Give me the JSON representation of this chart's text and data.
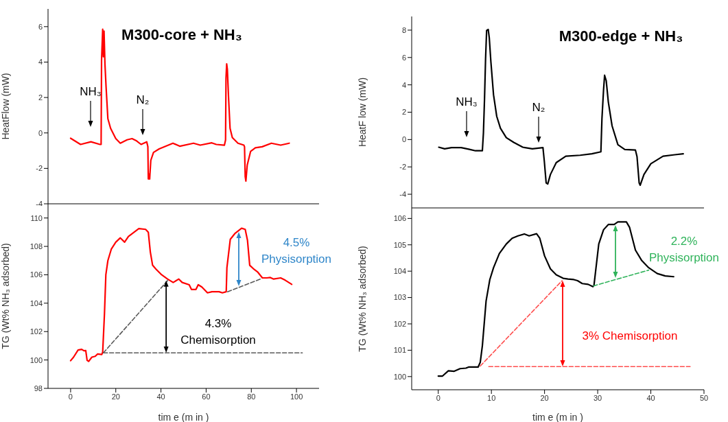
{
  "chart_data": [
    {
      "type": "line",
      "title": "M300-core + NH₃",
      "ylabel": "HeatFlow (mW)",
      "xlim": [
        -10,
        110
      ],
      "xticks": [
        0,
        20,
        40,
        60,
        80,
        100
      ],
      "ylim": [
        -4,
        7
      ],
      "yticks": [
        -4,
        -2,
        0,
        2,
        4,
        6
      ],
      "tick_labels": "y",
      "annotations": [
        "NH₃",
        "N₂"
      ],
      "series": [
        {
          "color": "#ff0000",
          "x": [
            0,
            4.4,
            9,
            13,
            13.5,
            13.7,
            14.2,
            14.5,
            14.8,
            15.2,
            15.7,
            16.5,
            17.7,
            20,
            22,
            25,
            27.2,
            29.2,
            31.2,
            33.7,
            34.2,
            34.4,
            34.7,
            35,
            35.5,
            36.7,
            39.2,
            45.3,
            48.3,
            54.4,
            57.4,
            62.5,
            64.5,
            68.1,
            68.6,
            68.8,
            69.1,
            69.4,
            69.9,
            70.6,
            71.6,
            74.1,
            76.7,
            77,
            77.3,
            77.6,
            78.2,
            79.7,
            81.8,
            84.8,
            88.9,
            93,
            96.8
          ],
          "values": [
            -0.3,
            -0.65,
            -0.5,
            -0.65,
            -0.65,
            4.1,
            5.85,
            4.3,
            5.75,
            3.9,
            2.6,
            0.8,
            0.26,
            -0.32,
            -0.58,
            -0.39,
            -0.32,
            -0.45,
            -0.65,
            -0.5,
            -0.78,
            -2.6,
            -2.33,
            -2.6,
            -1.55,
            -1.1,
            -0.9,
            -0.58,
            -0.75,
            -0.58,
            -0.69,
            -0.56,
            -0.65,
            -0.69,
            -0.4,
            3.1,
            3.9,
            3.6,
            2.07,
            0.26,
            -0.26,
            -0.58,
            -0.69,
            -0.78,
            -2.46,
            -2.72,
            -1.81,
            -1.04,
            -0.84,
            -0.78,
            -0.58,
            -0.69,
            -0.58
          ]
        }
      ]
    },
    {
      "type": "line",
      "xlabel": "tim e  (m in )",
      "ylabel": "TG (Wt% NH₃ adsorbed)",
      "xlim": [
        -10,
        110
      ],
      "xticks": [
        0,
        20,
        40,
        60,
        80,
        100
      ],
      "ylim": [
        98,
        111
      ],
      "yticks": [
        98,
        100,
        102,
        104,
        106,
        108,
        110
      ],
      "annotations": [
        {
          "text": "4.3%\nChemisorption",
          "x": 42.3,
          "y": 105.6
        },
        "4.5%\nPhysisorption"
      ],
      "series": [
        {
          "color": "#ff0000",
          "x": [
            0,
            1.3,
            3.3,
            4.9,
            5.9,
            6.7,
            7.3,
            8,
            9.4,
            10.9,
            11.9,
            13.8,
            14.2,
            15,
            15.6,
            16.5,
            18,
            20,
            22,
            23.9,
            25.6,
            27.7,
            30.2,
            33.2,
            34.4,
            35.3,
            36.3,
            37.8,
            40.3,
            42.9,
            45.4,
            47.9,
            49.4,
            52.5,
            53.5,
            55.5,
            56.5,
            58.1,
            60.6,
            62.6,
            65.7,
            67.2,
            68.9,
            69.2,
            70.7,
            72.7,
            75.7,
            77.3,
            78.3,
            79.3,
            80.9,
            82.9,
            84.9,
            86.9,
            88.4,
            89.9,
            93,
            95,
            97.9
          ],
          "values": [
            99.95,
            100.2,
            100.7,
            100.75,
            100.65,
            100.66,
            99.98,
            99.9,
            100.2,
            100.26,
            100.42,
            100.39,
            100.55,
            103.3,
            106.0,
            107.0,
            107.8,
            108.3,
            108.6,
            108.3,
            108.7,
            108.95,
            109.25,
            109.2,
            109.0,
            107.6,
            106.67,
            106.4,
            106.0,
            105.7,
            105.46,
            105.7,
            105.46,
            105.3,
            104.97,
            104.97,
            105.3,
            105.14,
            104.73,
            104.81,
            104.81,
            104.73,
            104.81,
            106.5,
            108.5,
            108.9,
            109.28,
            109.2,
            108.44,
            106.67,
            106.43,
            106.18,
            105.78,
            105.78,
            105.81,
            105.7,
            105.78,
            105.62,
            105.33
          ]
        },
        {
          "color": "#595959",
          "line_style": "dashed",
          "x": [
            14.5,
            43
          ],
          "values": [
            100.5,
            105.6
          ]
        },
        {
          "color": "#595959",
          "line_style": "dashed",
          "x": [
            14.5,
            102.6
          ],
          "values": [
            100.5,
            100.5
          ]
        },
        {
          "color": "#595959",
          "line_style": "dashed",
          "x": [
            69.5,
            84
          ],
          "values": [
            104.8,
            105.7
          ]
        }
      ]
    },
    {
      "type": "line",
      "title": "M300-edge + NH₃",
      "ylabel": "HeatF low (mW)",
      "xlim": [
        -5,
        50
      ],
      "xticks": [
        0,
        10,
        20,
        30,
        40,
        50
      ],
      "ylim": [
        -5,
        9
      ],
      "yticks": [
        -4,
        -2,
        0,
        2,
        4,
        6,
        8
      ],
      "tick_labels": "y",
      "annotations": [
        "NH₃",
        "N₂"
      ],
      "series": [
        {
          "color": "#000000",
          "x": [
            0.1,
            1.2,
            2.5,
            4.3,
            5.7,
            7,
            8.3,
            8.5,
            8.7,
            8.9,
            9.1,
            9.4,
            9.6,
            9.9,
            10.4,
            11,
            11.7,
            12.8,
            14.2,
            15.9,
            17.7,
            19.7,
            19.96,
            20.3,
            20.6,
            21.1,
            22.2,
            24,
            26.7,
            28.9,
            30.6,
            30.8,
            31.1,
            31.3,
            31.6,
            32,
            32.7,
            33.8,
            35.1,
            37.1,
            37.4,
            37.8,
            38,
            38.7,
            40,
            42.3,
            44.5,
            46.1
          ],
          "values": [
            -0.56,
            -0.68,
            -0.59,
            -0.59,
            -0.7,
            -0.82,
            -0.82,
            0.49,
            2.92,
            5.88,
            7.97,
            8.05,
            7.44,
            5.7,
            3.27,
            1.7,
            0.83,
            0.14,
            -0.21,
            -0.56,
            -0.68,
            -0.59,
            -1.6,
            -3.17,
            -3.25,
            -2.56,
            -1.69,
            -1.22,
            -1.15,
            -1.04,
            -0.9,
            1.53,
            3.62,
            4.7,
            4.31,
            2.75,
            1.01,
            -0.38,
            -0.73,
            -0.77,
            -1.25,
            -3.17,
            -3.34,
            -2.56,
            -1.77,
            -1.22,
            -1.11,
            -1.04
          ]
        }
      ]
    },
    {
      "type": "line",
      "xlabel": "tim e  (m in )",
      "ylabel": "TG (Wt% NH₃ adsorbed)",
      "xlim": [
        -5,
        50
      ],
      "xticks": [
        0,
        10,
        20,
        30,
        40,
        50
      ],
      "ylim": [
        99.5,
        106.4
      ],
      "yticks": [
        100,
        101,
        102,
        103,
        104,
        105,
        106
      ],
      "annotations": [
        "2.2%\nPhysisorption",
        "3% Chemisorption"
      ],
      "series": [
        {
          "color": "#000000",
          "x": [
            0,
            0.8,
            1.9,
            3,
            4.1,
            5.2,
            5.7,
            7.5,
            7.9,
            8.3,
            9,
            9.7,
            10.4,
            11.5,
            12.8,
            13.9,
            15,
            16.2,
            17.1,
            18.5,
            19.1,
            20,
            21.1,
            22.2,
            23.5,
            24.4,
            25.5,
            26.2,
            27.1,
            28.2,
            29.1,
            29.3,
            30.2,
            31.1,
            32,
            33.1,
            33.8,
            35.4,
            36,
            37.1,
            38.3,
            39.6,
            41.2,
            42.7,
            44.3
          ],
          "values": [
            100.02,
            100.02,
            100.22,
            100.2,
            100.3,
            100.32,
            100.36,
            100.36,
            100.54,
            101.17,
            102.87,
            103.68,
            104.13,
            104.67,
            105.03,
            105.25,
            105.34,
            105.41,
            105.34,
            105.42,
            105.25,
            104.58,
            104.09,
            103.86,
            103.73,
            103.7,
            103.68,
            103.64,
            103.53,
            103.5,
            103.41,
            103.46,
            105.03,
            105.57,
            105.77,
            105.77,
            105.87,
            105.87,
            105.66,
            104.8,
            104.4,
            104.13,
            103.91,
            103.82,
            103.79
          ]
        },
        {
          "color": "#ff4d4d",
          "line_style": "dashed",
          "x": [
            7.9,
            23.3
          ],
          "values": [
            100.4,
            103.64
          ]
        },
        {
          "color": "#ff4d4d",
          "line_style": "dashed",
          "x": [
            9.5,
            47.4
          ],
          "values": [
            100.38,
            100.38
          ]
        },
        {
          "color": "#2fb35a",
          "line_style": "dashed",
          "x": [
            29.2,
            39.6
          ],
          "values": [
            103.44,
            104.04
          ]
        }
      ]
    }
  ]
}
